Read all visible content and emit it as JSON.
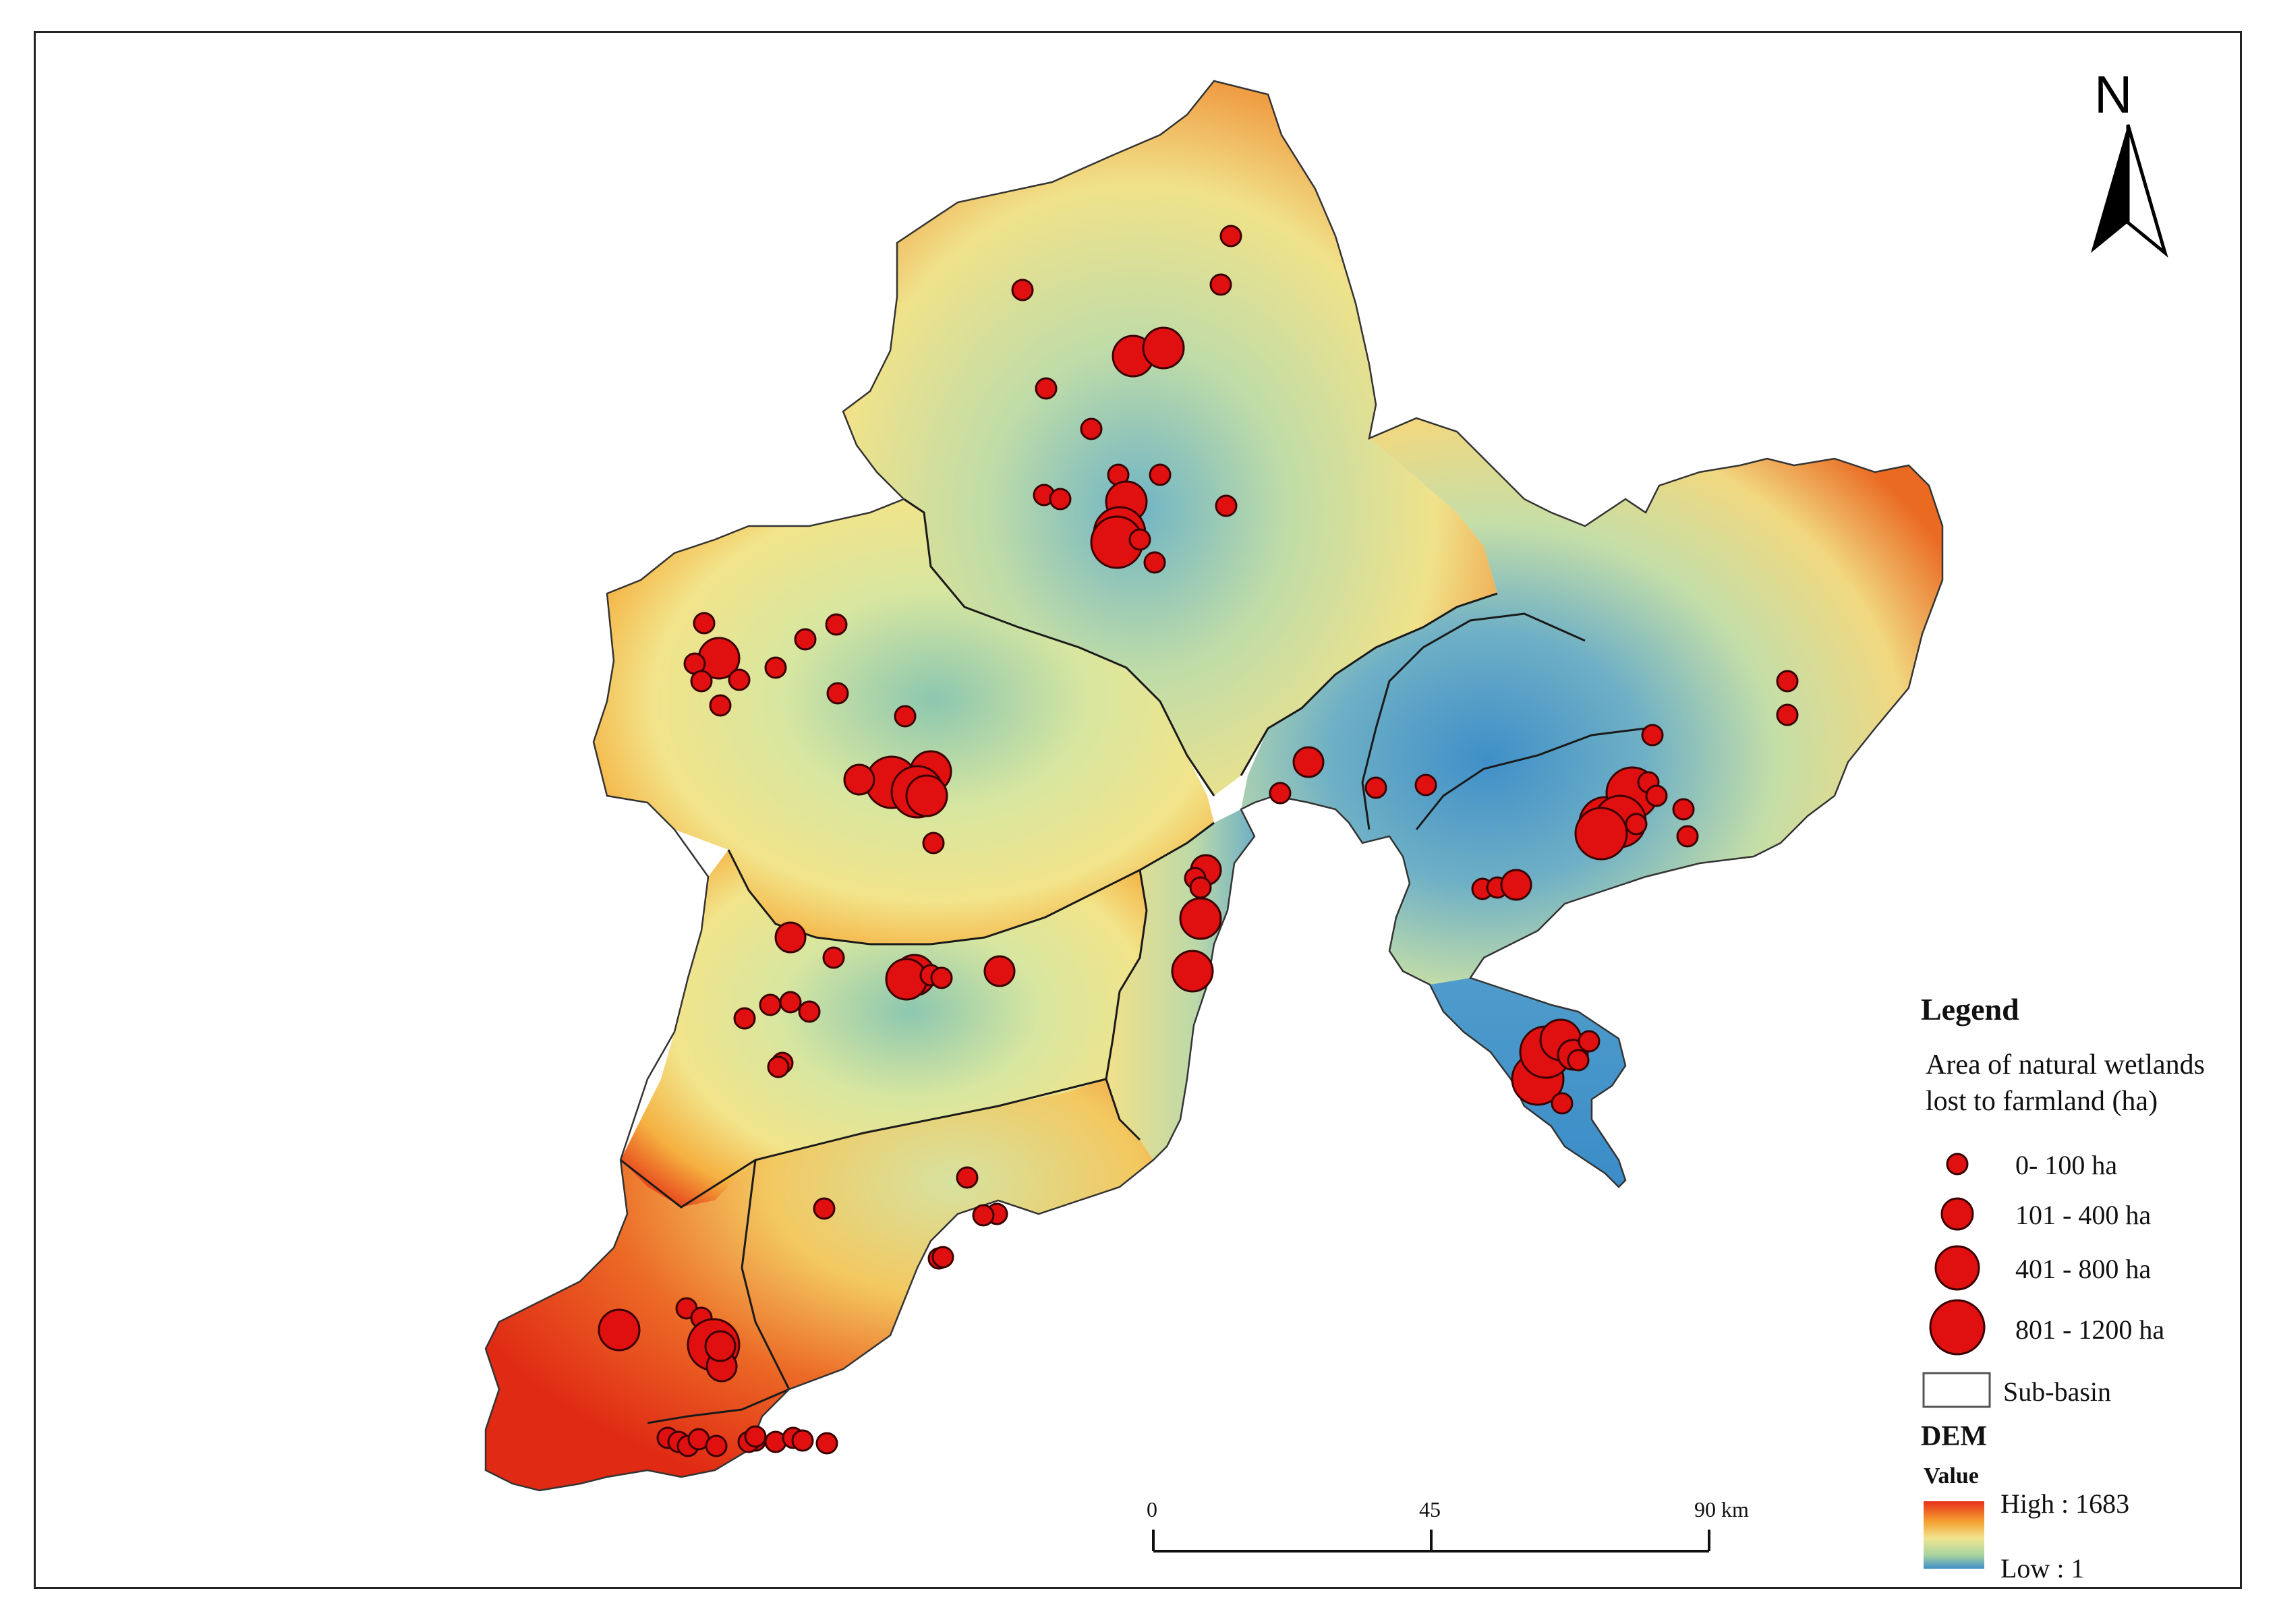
{
  "north_arrow": {
    "label": "N"
  },
  "legend": {
    "title": "Legend",
    "subtitle": "Area of natural wetlands lost to farmland (ha)",
    "classes": [
      {
        "label": "0- 100 ha"
      },
      {
        "label": "101 - 400 ha"
      },
      {
        "label": "401 - 800 ha"
      },
      {
        "label": "801 - 1200 ha"
      }
    ],
    "subbasin_label": "Sub-basin",
    "dem_title": "DEM",
    "dem_value_label": "Value",
    "dem_high": "High : 1683",
    "dem_low": "Low : 1"
  },
  "scale_bar": {
    "ticks": [
      "0",
      "45",
      "90 km"
    ]
  },
  "colors": {
    "point_fill": "#e01010",
    "point_stroke": "#3a0000",
    "dem_high": "#e83018",
    "dem_mid_high": "#f5a030",
    "dem_mid": "#f0e690",
    "dem_mid_low": "#a8d3a0",
    "dem_low": "#3f8fc8",
    "subbasin_line": "#1a1a1a"
  },
  "wetland_points": [
    {
      "size_class": 0
    },
    {
      "size_class": 0
    },
    {
      "size_class": 0
    },
    {
      "size_class": 2
    },
    {
      "size_class": 2
    },
    {
      "size_class": 0
    },
    {
      "size_class": 0
    },
    {
      "size_class": 0
    },
    {
      "size_class": 0
    },
    {
      "size_class": 0
    },
    {
      "size_class": 0
    },
    {
      "size_class": 2
    },
    {
      "size_class": 3
    },
    {
      "size_class": 3
    },
    {
      "size_class": 0
    },
    {
      "size_class": 0
    },
    {
      "size_class": 0
    },
    {
      "size_class": 0
    },
    {
      "size_class": 2
    },
    {
      "size_class": 0
    },
    {
      "size_class": 0
    },
    {
      "size_class": 0
    },
    {
      "size_class": 0
    },
    {
      "size_class": 0
    },
    {
      "size_class": 0
    },
    {
      "size_class": 0
    },
    {
      "size_class": 0
    },
    {
      "size_class": 0
    },
    {
      "size_class": 3
    },
    {
      "size_class": 2
    },
    {
      "size_class": 3
    },
    {
      "size_class": 2
    },
    {
      "size_class": 1
    },
    {
      "size_class": 0
    },
    {
      "size_class": 1
    },
    {
      "size_class": 0
    },
    {
      "size_class": 0
    },
    {
      "size_class": 0
    },
    {
      "size_class": 3
    },
    {
      "size_class": 3
    },
    {
      "size_class": 3
    },
    {
      "size_class": 3
    },
    {
      "size_class": 0
    },
    {
      "size_class": 0
    },
    {
      "size_class": 0
    },
    {
      "size_class": 0
    },
    {
      "size_class": 0
    },
    {
      "size_class": 0
    },
    {
      "size_class": 0
    },
    {
      "size_class": 0
    },
    {
      "size_class": 0
    },
    {
      "size_class": 0
    },
    {
      "size_class": 1
    },
    {
      "size_class": 1
    },
    {
      "size_class": 2
    },
    {
      "size_class": 0
    },
    {
      "size_class": 0
    },
    {
      "size_class": 2
    },
    {
      "size_class": 1
    },
    {
      "size_class": 2
    },
    {
      "size_class": 2
    },
    {
      "size_class": 0
    },
    {
      "size_class": 0
    },
    {
      "size_class": 0
    },
    {
      "size_class": 1
    },
    {
      "size_class": 0
    },
    {
      "size_class": 0
    },
    {
      "size_class": 0
    },
    {
      "size_class": 0
    },
    {
      "size_class": 0
    },
    {
      "size_class": 0
    },
    {
      "size_class": 0
    },
    {
      "size_class": 0
    },
    {
      "size_class": 3
    },
    {
      "size_class": 3
    },
    {
      "size_class": 2
    },
    {
      "size_class": 1
    },
    {
      "size_class": 0
    },
    {
      "size_class": 0
    },
    {
      "size_class": 0
    },
    {
      "size_class": 0
    },
    {
      "size_class": 0
    },
    {
      "size_class": 0
    },
    {
      "size_class": 0
    },
    {
      "size_class": 0
    },
    {
      "size_class": 0
    },
    {
      "size_class": 2
    },
    {
      "size_class": 3
    },
    {
      "size_class": 1
    },
    {
      "size_class": 1
    },
    {
      "size_class": 0
    },
    {
      "size_class": 0
    },
    {
      "size_class": 0
    },
    {
      "size_class": 0
    },
    {
      "size_class": 0
    },
    {
      "size_class": 0
    },
    {
      "size_class": 0
    },
    {
      "size_class": 0
    },
    {
      "size_class": 0
    },
    {
      "size_class": 0
    },
    {
      "size_class": 0
    },
    {
      "size_class": 0
    }
  ]
}
